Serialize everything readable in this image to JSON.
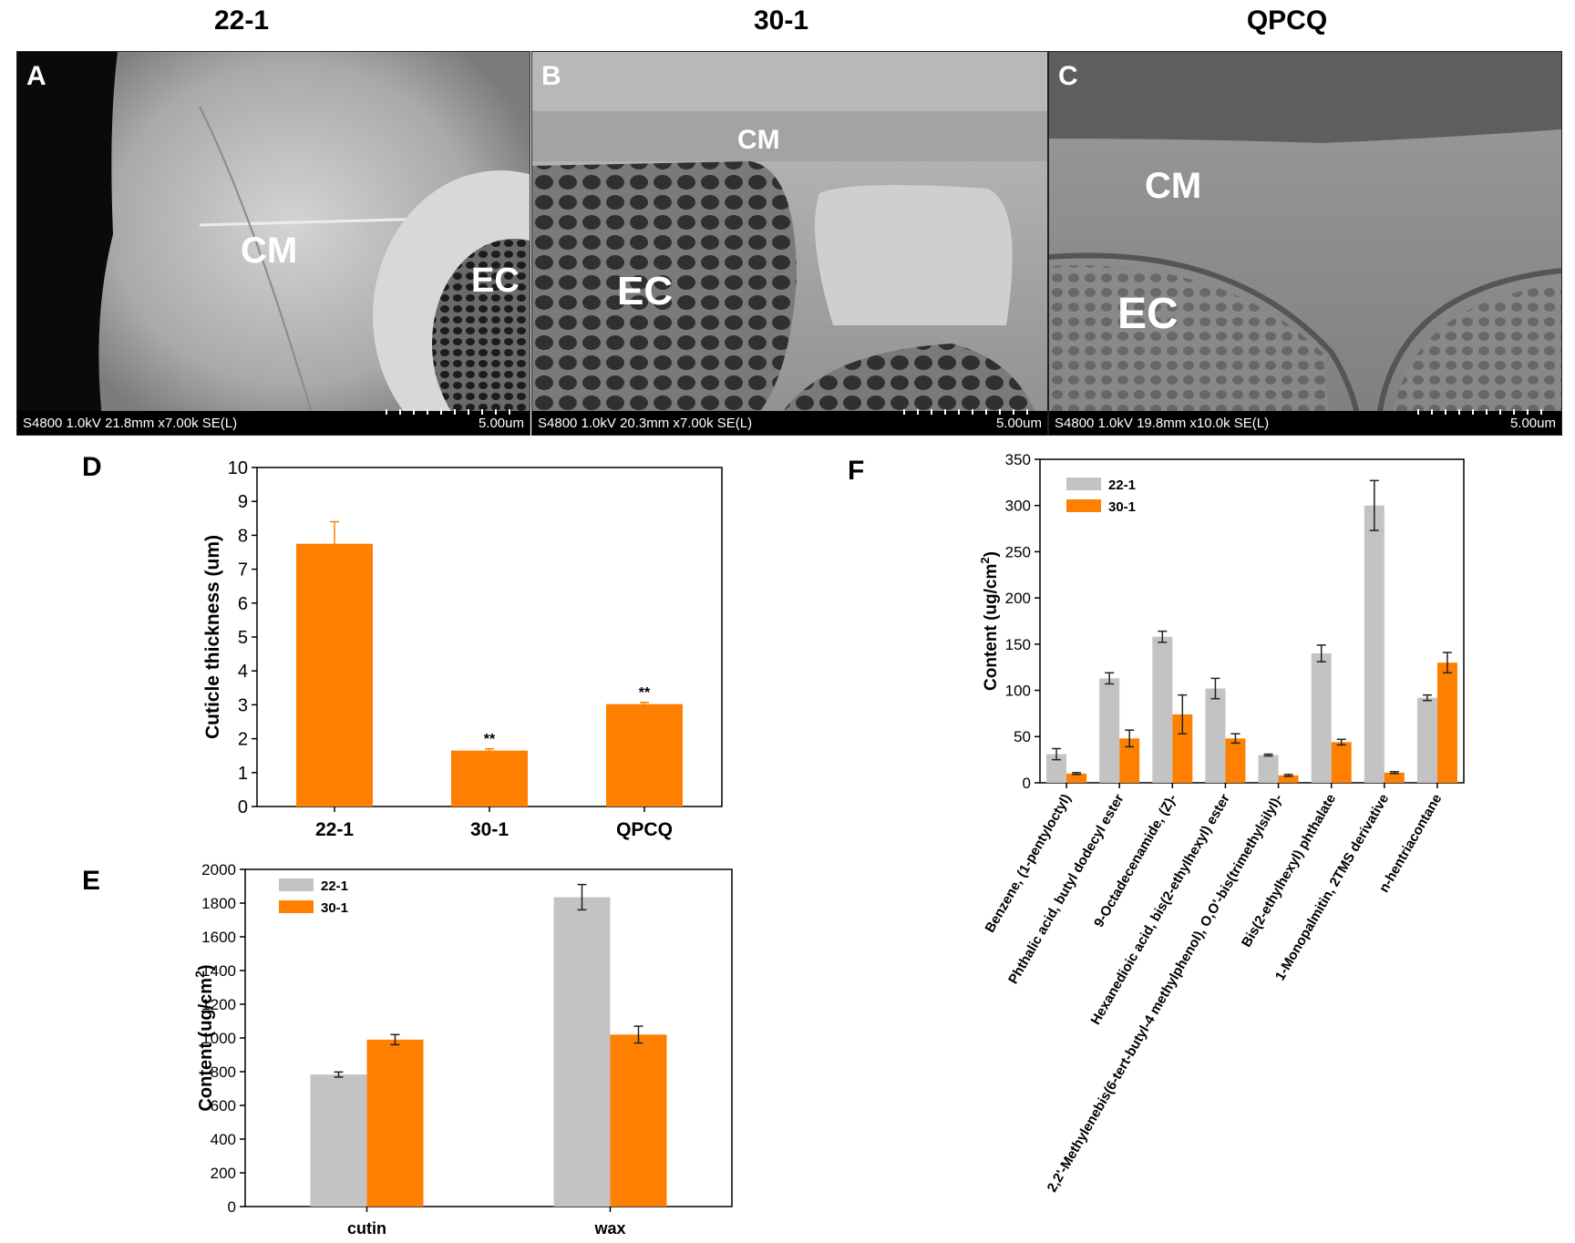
{
  "columns": [
    {
      "title": "22-1"
    },
    {
      "title": "30-1"
    },
    {
      "title": "QPCQ"
    }
  ],
  "sem_panels": [
    {
      "letter": "A",
      "meta": "S4800 1.0kV 21.8mm x7.00k SE(L)",
      "scale": "5.00um",
      "labels": [
        {
          "text": "CM"
        },
        {
          "text": "EC"
        }
      ]
    },
    {
      "letter": "B",
      "meta": "S4800 1.0kV 20.3mm x7.00k SE(L)",
      "scale": "5.00um",
      "labels": [
        {
          "text": "CM"
        },
        {
          "text": "EC"
        }
      ]
    },
    {
      "letter": "C",
      "meta": "S4800 1.0kV 19.8mm x10.0k SE(L)",
      "scale": "5.00um",
      "labels": [
        {
          "text": "CM"
        },
        {
          "text": "EC"
        }
      ]
    }
  ],
  "colors": {
    "gray": "#c3c3c3",
    "orange": "#ff8000",
    "error": "#222222"
  },
  "chart_data": [
    {
      "panel": "D",
      "type": "bar",
      "categories": [
        "22-1",
        "30-1",
        "QPCQ"
      ],
      "values": [
        7.75,
        1.65,
        3.02
      ],
      "errors": [
        0.65,
        0.05,
        0.05
      ],
      "annotations": [
        "",
        "**",
        "**"
      ],
      "ylabel": "Cuticle thickness (um)",
      "ylim": [
        0,
        10
      ],
      "yticks": [
        "0",
        "1",
        "2",
        "3",
        "4",
        "5",
        "6",
        "7",
        "8",
        "9",
        "10"
      ],
      "color": "#ff8000"
    },
    {
      "panel": "E",
      "type": "bar",
      "categories": [
        "cutin",
        "wax"
      ],
      "series": [
        {
          "name": "22-1",
          "color": "#c3c3c3",
          "values": [
            783,
            1835
          ],
          "errors": [
            15,
            75
          ]
        },
        {
          "name": "30-1",
          "color": "#ff8000",
          "values": [
            990,
            1020
          ],
          "errors": [
            30,
            50
          ]
        }
      ],
      "ylabel": "Content (ug/cm",
      "ylabel_sup": "2",
      "ylabel_end": ")",
      "ylim": [
        0,
        2000
      ],
      "yticks": [
        "0",
        "200",
        "400",
        "600",
        "800",
        "1000",
        "1200",
        "1400",
        "1600",
        "1800",
        "2000"
      ],
      "legend": "top-left"
    },
    {
      "panel": "F",
      "type": "bar",
      "categories": [
        "Benzene, (1-pentyloctyl)",
        "Phthalic acid, butyl dodecyl ester",
        "9-Octadecenamide, (Z)-",
        "Hexanedioic acid, bis(2-ethylhexyl) ester",
        "2,2'-Methylenebis(6-tert-butyl-4 methylphenol), O,O'-bis(trimethylsilyl)-",
        "Bis(2-ethylhexyl) phthalate",
        "1-Monopalmitin, 2TMS derivative",
        "n-hentriacontane"
      ],
      "series": [
        {
          "name": "22-1",
          "color": "#c3c3c3",
          "values": [
            31,
            113,
            158,
            102,
            30,
            140,
            300,
            92
          ],
          "errors": [
            6,
            6,
            6,
            11,
            1,
            9,
            27,
            3
          ]
        },
        {
          "name": "30-1",
          "color": "#ff8000",
          "values": [
            10,
            48,
            74,
            48,
            8,
            44,
            11,
            130
          ],
          "errors": [
            1,
            9,
            21,
            5,
            1,
            3,
            1,
            11
          ]
        }
      ],
      "ylabel": "Content (ug/cm",
      "ylabel_sup": "2",
      "ylabel_end": ")",
      "ylim": [
        0,
        350
      ],
      "yticks": [
        "0",
        "50",
        "100",
        "150",
        "200",
        "250",
        "300",
        "350"
      ],
      "legend": "top-left"
    }
  ]
}
